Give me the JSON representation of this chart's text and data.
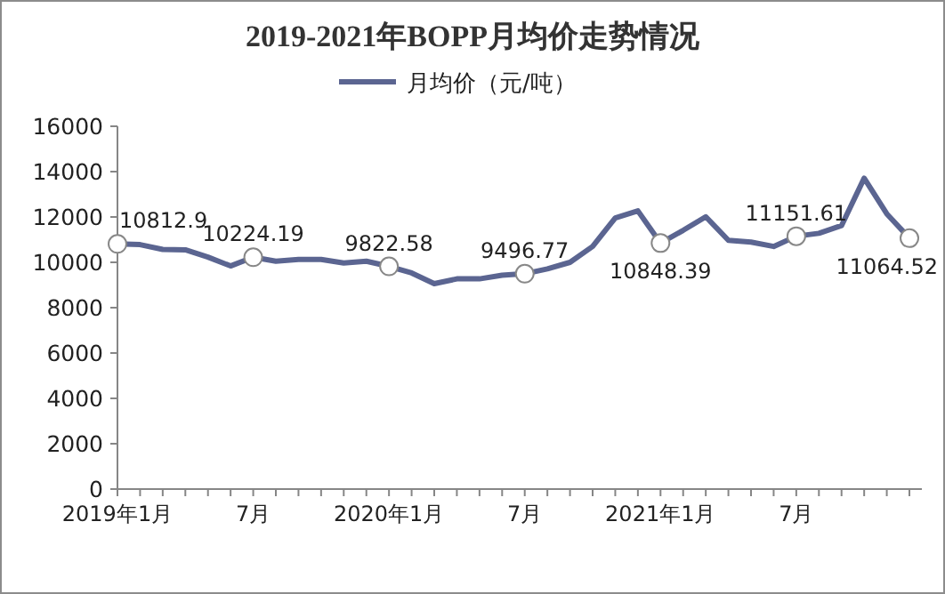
{
  "chart_data": {
    "type": "line",
    "title": "2019-2021年BOPP月均价走势情况",
    "categories": [
      "2019年1月",
      null,
      null,
      null,
      null,
      null,
      "7月",
      null,
      null,
      null,
      null,
      null,
      "2020年1月",
      null,
      null,
      null,
      null,
      null,
      "7月",
      null,
      null,
      null,
      null,
      null,
      "2021年1月",
      null,
      null,
      null,
      null,
      null,
      "7月",
      null,
      null,
      null,
      null,
      null
    ],
    "series": [
      {
        "name": "月均价（元/吨）",
        "color": "#5b6591",
        "values": [
          10812.9,
          10780,
          10570,
          10550,
          10230,
          9840,
          10224.19,
          10050,
          10130,
          10130,
          9970,
          10050,
          9822.58,
          9530,
          9060,
          9270,
          9270,
          9430,
          9496.77,
          9710,
          10000,
          10700,
          11960,
          12270,
          10848.39,
          11410,
          12010,
          10970,
          10890,
          10700,
          11151.61,
          11280,
          11620,
          13710,
          12140,
          11064.52
        ],
        "value_labels": [
          "10812.9",
          null,
          null,
          null,
          null,
          null,
          "10224.19",
          null,
          null,
          null,
          null,
          null,
          "9822.58",
          null,
          null,
          null,
          null,
          null,
          "9496.77",
          null,
          null,
          null,
          null,
          null,
          "10848.39",
          null,
          null,
          null,
          null,
          null,
          "11151.61",
          null,
          null,
          null,
          null,
          "11064.52"
        ]
      }
    ],
    "ylim": [
      0,
      16000
    ],
    "yticks": [
      0,
      2000,
      4000,
      6000,
      8000,
      10000,
      12000,
      14000,
      16000
    ],
    "grid": false,
    "legend": "top",
    "line_style": "solid"
  }
}
